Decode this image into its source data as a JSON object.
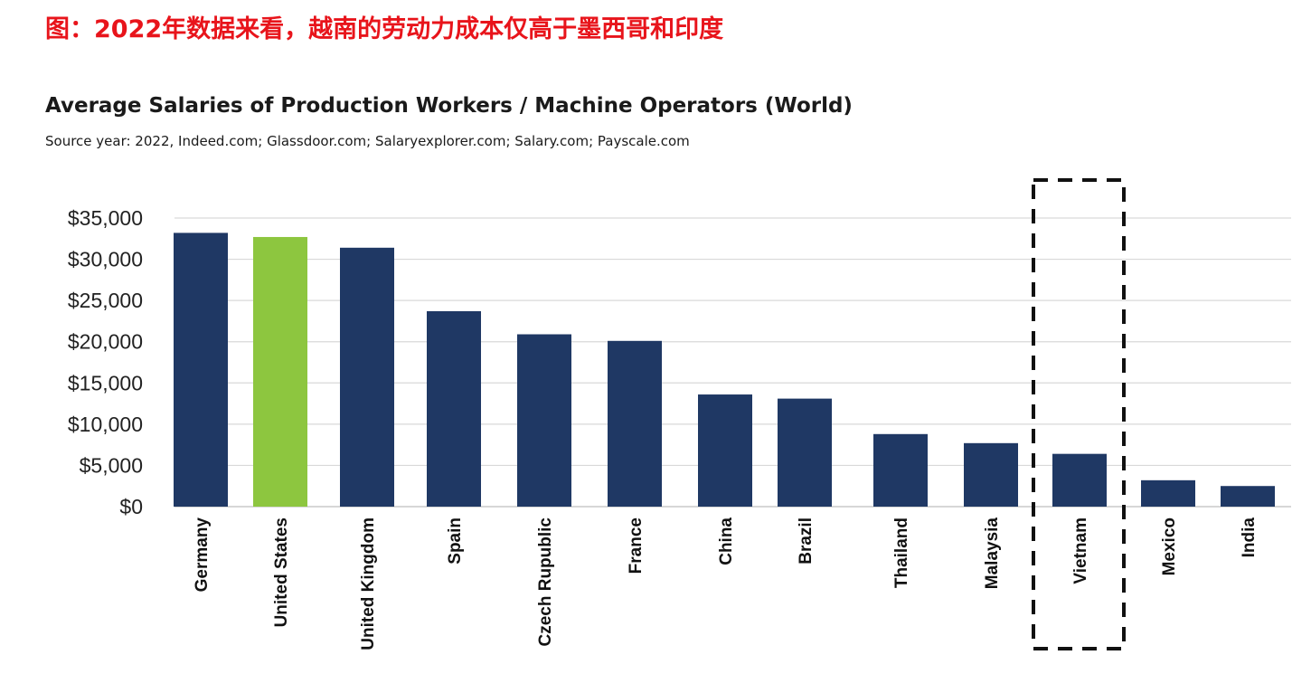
{
  "caption": "图：2022年数据来看，越南的劳动力成本仅高于墨西哥和印度",
  "chart_data": {
    "type": "bar",
    "title": "Average Salaries of Production Workers / Machine Operators (World)",
    "subtitle": "Source year: 2022, Indeed.com; Glassdoor.com; Salaryexplorer.com; Salary.com; Payscale.com",
    "categories": [
      "Germany",
      "United States",
      "United Kingdom",
      "Spain",
      "Czech Rupublic",
      "France",
      "China",
      "Brazil",
      "Thailand",
      "Malaysia",
      "Vietnam",
      "Mexico",
      "India"
    ],
    "series": [
      {
        "values": [
          33200,
          32700,
          31400,
          23700,
          20900,
          20100,
          13600,
          13100,
          8800,
          7700,
          6400,
          3200,
          2500
        ]
      }
    ],
    "ylim": [
      0,
      35000
    ],
    "yticks": [
      0,
      5000,
      10000,
      15000,
      20000,
      25000,
      30000,
      35000
    ],
    "ytick_labels": [
      "$0",
      "$5,000",
      "$10,000",
      "$15,000",
      "$20,000",
      "$25,000",
      "$30,000",
      "$35,000"
    ],
    "grid": true,
    "colors": {
      "default_bar": "#1f3864",
      "highlight_bar": "#8dc63f",
      "grid": "#d9d9d9",
      "caption": "#e8141b"
    },
    "highlighted_category": "United States",
    "boxed_category": "Vietnam"
  }
}
